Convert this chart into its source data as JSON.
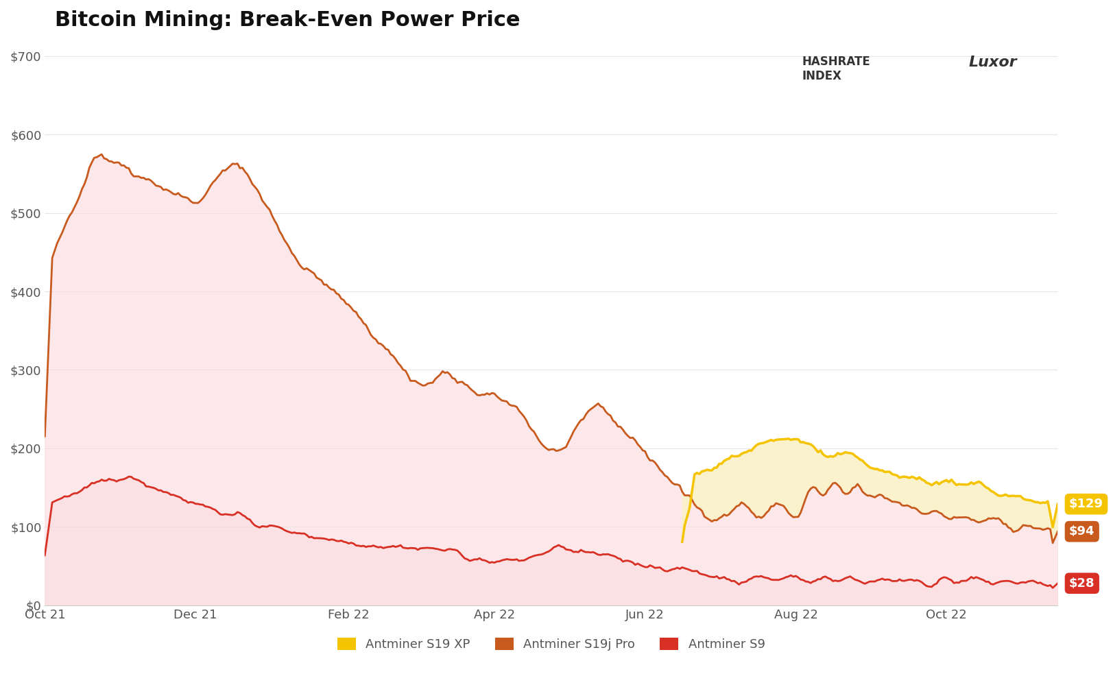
{
  "title": "Bitcoin Mining: Break-Even Power Price",
  "background_color": "#ffffff",
  "y_ticks": [
    0,
    100,
    200,
    300,
    400,
    500,
    600,
    700
  ],
  "y_tick_labels": [
    "$0",
    "$100",
    "$200",
    "$300",
    "$400",
    "$500",
    "$600",
    "$700"
  ],
  "x_tick_labels": [
    "Oct 21",
    "Dec 21",
    "Feb 22",
    "Apr 22",
    "Jun 22",
    "Aug 22",
    "Oct 22"
  ],
  "legend": [
    {
      "label": "Antminer S19 XP",
      "color": "#F5C400"
    },
    {
      "label": "Antminer S19j Pro",
      "color": "#C85A1E"
    },
    {
      "label": "Antminer S9",
      "color": "#D93025"
    }
  ],
  "end_labels": [
    {
      "value": "$129",
      "color": "#F5C400"
    },
    {
      "value": "$94",
      "color": "#C85A1E"
    },
    {
      "value": "$28",
      "color": "#D93025"
    }
  ],
  "s19xp_color": "#F5C400",
  "s19xp_fill": "#FAF0C8",
  "s19jpro_color": "#C85A1E",
  "s19jpro_fill": "#FADADD",
  "s9_color": "#D93025",
  "s9_fill": "#FADADD",
  "ylim": [
    0,
    720
  ],
  "title_fontsize": 22,
  "tick_fontsize": 13,
  "legend_fontsize": 13
}
